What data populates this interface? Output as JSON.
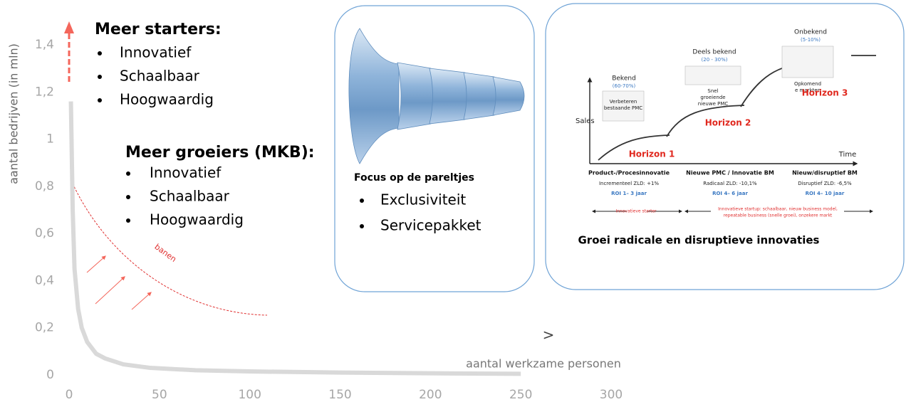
{
  "chart_data": {
    "type": "line",
    "x_label": "aantal werkzame personen",
    "y_label": "aantal bedrijven (in mln)",
    "x": [
      1,
      2,
      3,
      5,
      7,
      10,
      15,
      20,
      30,
      45,
      70,
      100,
      150,
      200,
      250
    ],
    "values": [
      1.16,
      0.7,
      0.45,
      0.28,
      0.2,
      0.14,
      0.09,
      0.07,
      0.045,
      0.03,
      0.02,
      0.015,
      0.01,
      0.007,
      0.005
    ],
    "color": "#d9d9d9",
    "xlim": [
      0,
      300
    ],
    "xticks": [
      0,
      50,
      100,
      150,
      200,
      250,
      300
    ],
    "ylim": [
      0,
      1.4
    ],
    "yticks": [
      0,
      {
        "value": 0.2,
        "label": "0,2"
      },
      {
        "value": 0.4,
        "label": "0,4"
      },
      {
        "value": 0.6,
        "label": "0,6"
      },
      {
        "value": 0.8,
        "label": "0,8"
      },
      1,
      {
        "value": 1.2,
        "label": "1,2"
      },
      {
        "value": 1.4,
        "label": "1,4"
      }
    ],
    "grid": false,
    "annotations": [
      "banen",
      ">"
    ]
  },
  "starters": {
    "title": "Meer starters:",
    "bullets": [
      "Innovatief",
      "Schaalbaar",
      "Hoogwaardig"
    ]
  },
  "groeiers": {
    "title": "Meer groeiers (MKB):",
    "bullets": [
      "Innovatief",
      "Schaalbaar",
      "Hoogwaardig"
    ]
  },
  "focus_panel": {
    "title": "Focus op de pareltjes",
    "bullets": [
      "Exclusiviteit",
      "Servicepakket"
    ]
  },
  "horizon_panel": {
    "y_axis": "Sales",
    "x_axis": "Time",
    "horizons": [
      {
        "label": "Bekend",
        "share": "(60-70%)",
        "card": [
          "Verbeteren",
          "bestaande PMC"
        ],
        "name": "Horizon 1",
        "kind": "Product-/Procesinnovatie",
        "zld": "Incrementeel ZLD: +1%",
        "roi": "ROI 1– 3 jaar"
      },
      {
        "label": "Deels bekend",
        "share": "(20 - 30%)",
        "card": [
          "Snel",
          "groeiende",
          "nieuwe PMC"
        ],
        "name": "Horizon 2",
        "kind": "Nieuwe PMC / Innovatie BM",
        "zld": "Radicaal ZLD: -10,1%",
        "roi": "ROI 4– 6 jaar"
      },
      {
        "label": "Onbekend",
        "share": "(5-10%)",
        "card": [
          "Opkomend",
          "e markten"
        ],
        "name": "Horizon 3",
        "kind": "Nieuw/disruptief BM",
        "zld": "Disruptief ZLD: -6,5%",
        "roi": "ROI 4– 10 jaar"
      }
    ],
    "starter": "Innovatieve starter",
    "startup": [
      "Innovatieve startup: schaalbaar, nieuw business model,",
      "repeatable business (snelle groei), onzekere markt"
    ],
    "caption": "Groei radicale en disruptieve innovaties"
  }
}
